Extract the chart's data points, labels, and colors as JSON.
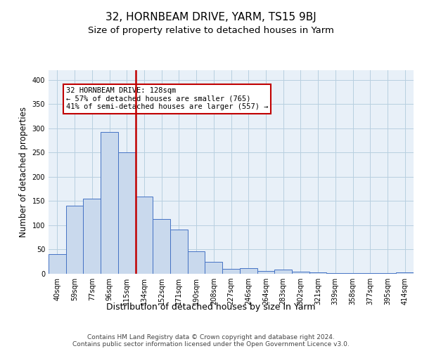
{
  "title": "32, HORNBEAM DRIVE, YARM, TS15 9BJ",
  "subtitle": "Size of property relative to detached houses in Yarm",
  "xlabel": "Distribution of detached houses by size in Yarm",
  "ylabel": "Number of detached properties",
  "categories": [
    "40sqm",
    "59sqm",
    "77sqm",
    "96sqm",
    "115sqm",
    "134sqm",
    "152sqm",
    "171sqm",
    "190sqm",
    "208sqm",
    "227sqm",
    "246sqm",
    "264sqm",
    "283sqm",
    "302sqm",
    "321sqm",
    "339sqm",
    "358sqm",
    "377sqm",
    "395sqm",
    "414sqm"
  ],
  "values": [
    41,
    140,
    155,
    292,
    251,
    160,
    113,
    91,
    46,
    24,
    10,
    11,
    6,
    9,
    4,
    3,
    2,
    2,
    2,
    1,
    3
  ],
  "bar_color": "#c9d9ed",
  "bar_edge_color": "#4472c4",
  "highlight_index": 4,
  "highlight_color": "#c9d9ed",
  "highlight_edge_color": "#c00000",
  "vline_color": "#c00000",
  "annotation_text": "32 HORNBEAM DRIVE: 128sqm\n← 57% of detached houses are smaller (765)\n41% of semi-detached houses are larger (557) →",
  "annotation_box_color": "white",
  "annotation_box_edge_color": "#c00000",
  "ylim": [
    0,
    420
  ],
  "yticks": [
    0,
    50,
    100,
    150,
    200,
    250,
    300,
    350,
    400
  ],
  "grid_color": "#b8cfe0",
  "bg_color": "#e8f0f8",
  "footer": "Contains HM Land Registry data © Crown copyright and database right 2024.\nContains public sector information licensed under the Open Government Licence v3.0.",
  "title_fontsize": 11,
  "subtitle_fontsize": 9.5,
  "ylabel_fontsize": 8.5,
  "xlabel_fontsize": 9,
  "tick_fontsize": 7,
  "footer_fontsize": 6.5,
  "ann_fontsize": 7.5
}
